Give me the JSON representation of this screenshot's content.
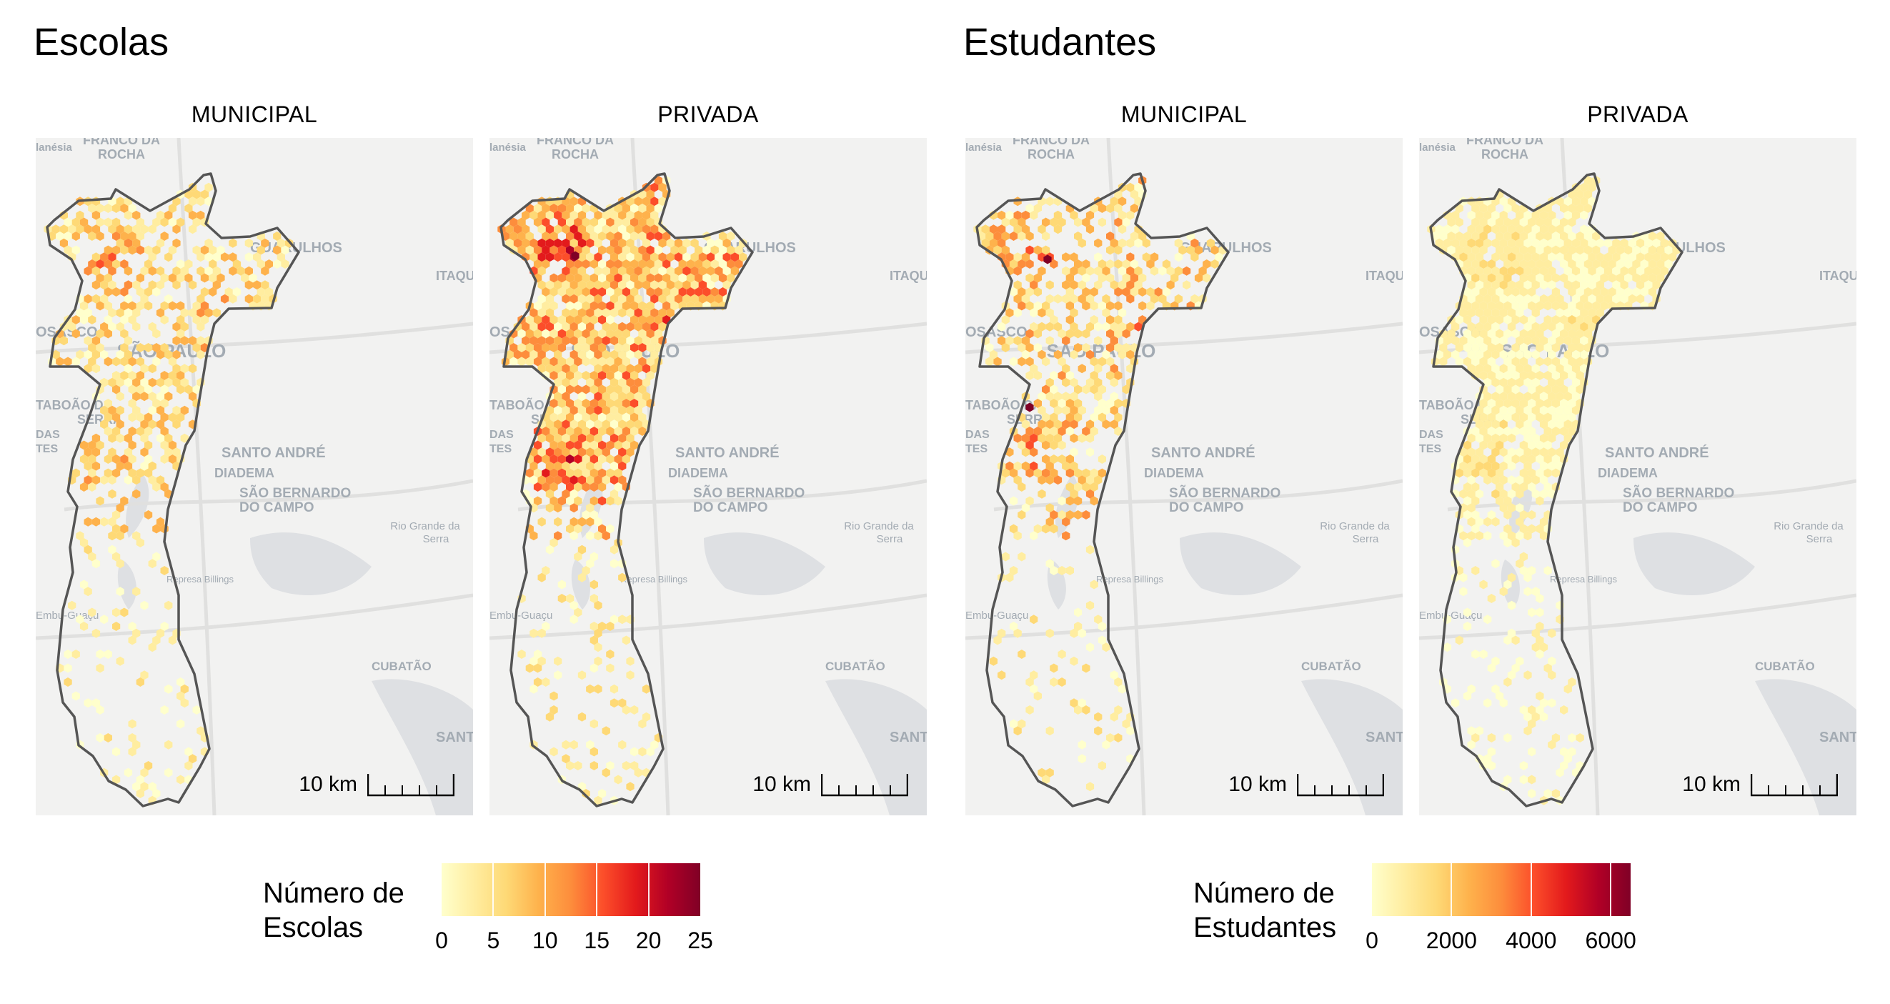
{
  "groups": [
    {
      "title": "Escolas",
      "panels": [
        {
          "facet": "MUNICIPAL",
          "scale": "10 km",
          "palette_max": 25,
          "density": 0.55,
          "intensity": 0.42
        },
        {
          "facet": "PRIVADA",
          "scale": "10 km",
          "palette_max": 25,
          "density": 0.9,
          "intensity": 0.62
        }
      ],
      "legend": {
        "title": "Número de\nEscolas",
        "ticks": [
          "0",
          "5",
          "10",
          "15",
          "20",
          "25"
        ],
        "max": 25
      }
    },
    {
      "title": "Estudantes",
      "panels": [
        {
          "facet": "MUNICIPAL",
          "scale": "10 km",
          "palette_max": 6500,
          "density": 0.55,
          "intensity": 0.5
        },
        {
          "facet": "PRIVADA",
          "scale": "10 km",
          "palette_max": 6500,
          "density": 0.9,
          "intensity": 0.18
        }
      ],
      "legend": {
        "title": "Número de\nEstudantes",
        "ticks": [
          "0",
          "2000",
          "4000",
          "6000"
        ],
        "tick_values": [
          0,
          2000,
          4000,
          6000
        ],
        "max": 6500
      }
    }
  ],
  "basemap_labels": [
    {
      "text": "FRANCO DA",
      "key": "franco"
    },
    {
      "text": "ROCHA",
      "key": "rocha"
    },
    {
      "text": "lanésia",
      "key": "lanesia"
    },
    {
      "text": "GUARULHOS",
      "key": "guarulhos"
    },
    {
      "text": "OSASCO",
      "key": "osasco"
    },
    {
      "text": "SÃO PAULO",
      "key": "saopaulo"
    },
    {
      "text": "TABOÃO DA",
      "key": "taboao"
    },
    {
      "text": "SERRA",
      "key": "serra"
    },
    {
      "text": "SANTO ANDRÉ",
      "key": "santoandre"
    },
    {
      "text": "DIADEMA",
      "key": "diadema"
    },
    {
      "text": "SÃO BERNARDO",
      "key": "sbc1"
    },
    {
      "text": "DO CAMPO",
      "key": "sbc2"
    },
    {
      "text": "Rio Grande da",
      "key": "rgs1"
    },
    {
      "text": "Serra",
      "key": "rgs2"
    },
    {
      "text": "Represa Billings",
      "key": "billings"
    },
    {
      "text": "Embu-Guaçu",
      "key": "embu"
    },
    {
      "text": "CUBATÃO",
      "key": "cubatao"
    },
    {
      "text": "SANTOS",
      "key": "santos"
    },
    {
      "text": "ITAQUA",
      "key": "itaqua"
    },
    {
      "text": "DAS",
      "key": "das"
    },
    {
      "text": "TES",
      "key": "tes"
    }
  ],
  "colors": {
    "palette": [
      "#ffffcc",
      "#ffeda0",
      "#fed976",
      "#feb24c",
      "#fd8d3c",
      "#fc4e2a",
      "#e31a1c",
      "#b10026",
      "#800026"
    ],
    "panel_bg": "#f2f2f1",
    "water": "#d7dadd",
    "boundary": "#555555",
    "basemap_text": "#a3abb3"
  }
}
